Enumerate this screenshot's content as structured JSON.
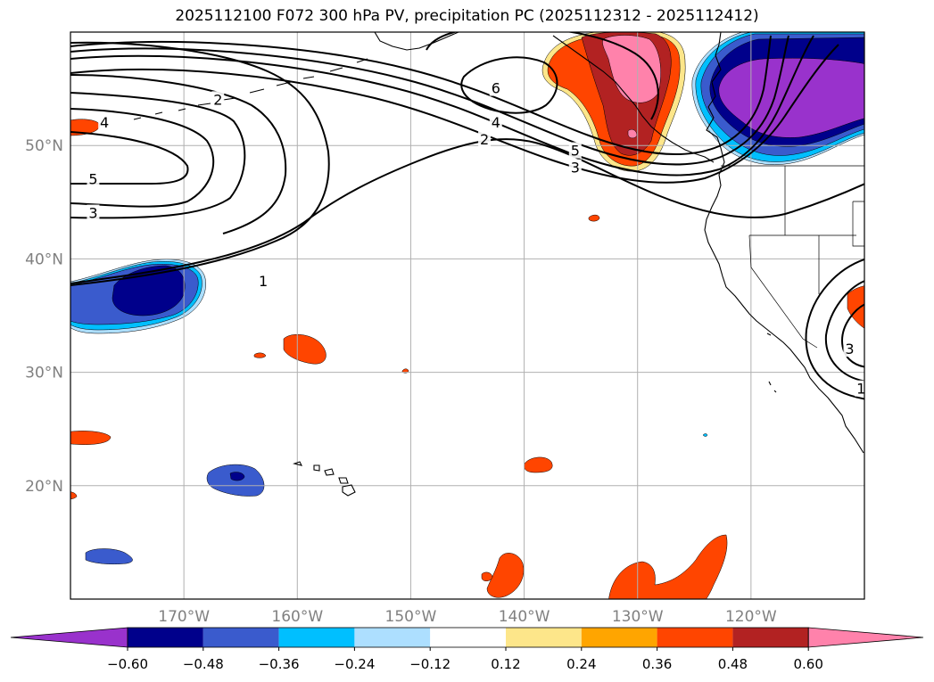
{
  "title": "2025112100 F072 300 hPa PV, precipitation PC (2025112312 - 2025112412)",
  "colors": {
    "neg_extend": "#9932cc",
    "neg_060": "#00008b",
    "neg_048": "#3a5bcd",
    "neg_036": "#00bfff",
    "neg_024": "#addfff",
    "neutral": "#ffffff",
    "pos_012": "#fde68a",
    "pos_024": "#ffa500",
    "pos_036": "#ff4500",
    "pos_048": "#b22222",
    "pos_060": "#ff82ab",
    "land_lines": "#000000",
    "grid": "#b0b0b0",
    "tick_label": "#808080"
  },
  "map": {
    "lon_range": [
      -180,
      -110
    ],
    "lat_range": [
      10,
      60
    ],
    "lat_labels": [
      "50°N",
      "40°N",
      "30°N",
      "20°N"
    ],
    "lon_labels": [
      "170°W",
      "160°W",
      "150°W",
      "140°W",
      "130°W",
      "120°W"
    ]
  },
  "contour_labels": [
    {
      "text": "2",
      "lon": -167,
      "lat": 54
    },
    {
      "text": "4",
      "lon": -177,
      "lat": 52
    },
    {
      "text": "5",
      "lon": -178,
      "lat": 47
    },
    {
      "text": "3",
      "lon": -178,
      "lat": 44
    },
    {
      "text": "1",
      "lon": -163,
      "lat": 38
    },
    {
      "text": "6",
      "lon": -142.5,
      "lat": 55
    },
    {
      "text": "4",
      "lon": -142.5,
      "lat": 52
    },
    {
      "text": "2",
      "lon": -143.5,
      "lat": 50.5
    },
    {
      "text": "5",
      "lon": -135.5,
      "lat": 49.5
    },
    {
      "text": "3",
      "lon": -135.5,
      "lat": 48
    },
    {
      "text": "3",
      "lon": -111.3,
      "lat": 32
    },
    {
      "text": "1",
      "lon": -110.3,
      "lat": 28.5
    }
  ],
  "colorbar": {
    "ticks": [
      "−0.60",
      "−0.48",
      "−0.36",
      "−0.24",
      "−0.12",
      "0.12",
      "0.24",
      "0.36",
      "0.48",
      "0.60"
    ]
  }
}
